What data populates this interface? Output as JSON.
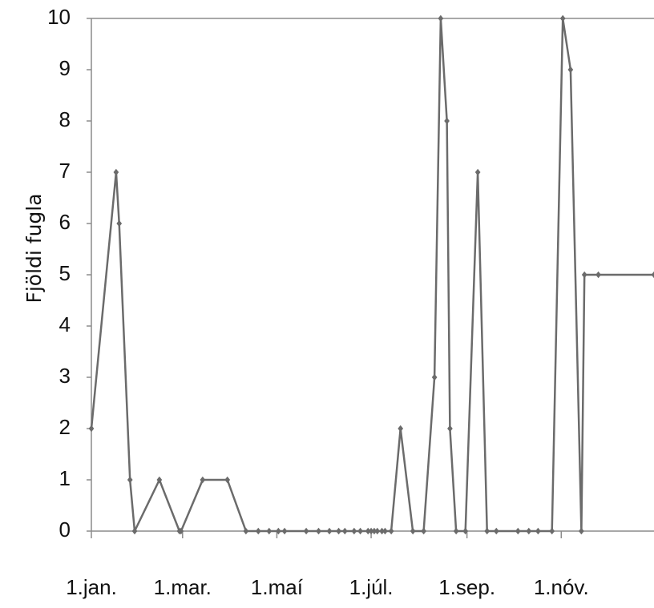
{
  "chart_data": {
    "type": "line",
    "title": "",
    "xlabel": "",
    "ylabel": "Fjöldi fugla",
    "ylim": [
      0,
      10
    ],
    "yticks": [
      0,
      1,
      2,
      3,
      4,
      5,
      6,
      7,
      8,
      9,
      10
    ],
    "xlim": [
      "2021-01-01",
      "2021-12-31"
    ],
    "xticks": [
      {
        "date": "2021-01-01",
        "label": "1.jan."
      },
      {
        "date": "2021-03-01",
        "label": "1.mar."
      },
      {
        "date": "2021-05-01",
        "label": "1.maí"
      },
      {
        "date": "2021-07-01",
        "label": "1.júl."
      },
      {
        "date": "2021-09-01",
        "label": "1.sep."
      },
      {
        "date": "2021-11-01",
        "label": "1.nóv."
      }
    ],
    "grid": false,
    "legend": "none",
    "line_color": "#6b6b6b",
    "series": [
      {
        "x": [
          "2021-01-01",
          "2021-01-17",
          "2021-01-19",
          "2021-01-26",
          "2021-01-29",
          "2021-02-14",
          "2021-02-27",
          "2021-02-28",
          "2021-03-14",
          "2021-03-30",
          "2021-04-11",
          "2021-04-19",
          "2021-04-26",
          "2021-05-02",
          "2021-05-06",
          "2021-05-20",
          "2021-05-28",
          "2021-06-04",
          "2021-06-10",
          "2021-06-14",
          "2021-06-20",
          "2021-06-24",
          "2021-06-29",
          "2021-07-01",
          "2021-07-03",
          "2021-07-05",
          "2021-07-08",
          "2021-07-10",
          "2021-07-14",
          "2021-07-20",
          "2021-07-28",
          "2021-08-04",
          "2021-08-11",
          "2021-08-15",
          "2021-08-19",
          "2021-08-21",
          "2021-08-25",
          "2021-08-31",
          "2021-09-08",
          "2021-09-14",
          "2021-09-20",
          "2021-10-04",
          "2021-10-11",
          "2021-10-17",
          "2021-10-26",
          "2021-11-02",
          "2021-11-07",
          "2021-11-14",
          "2021-11-16",
          "2021-11-25",
          "2021-12-31"
        ],
        "y": [
          2,
          7,
          6,
          1,
          0,
          1,
          0,
          0,
          1,
          1,
          0,
          0,
          0,
          0,
          0,
          0,
          0,
          0,
          0,
          0,
          0,
          0,
          0,
          0,
          0,
          0,
          0,
          0,
          0,
          2,
          0,
          0,
          3,
          10,
          8,
          2,
          0,
          0,
          7,
          0,
          0,
          0,
          0,
          0,
          0,
          10,
          9,
          0,
          5,
          5,
          5
        ]
      }
    ]
  }
}
